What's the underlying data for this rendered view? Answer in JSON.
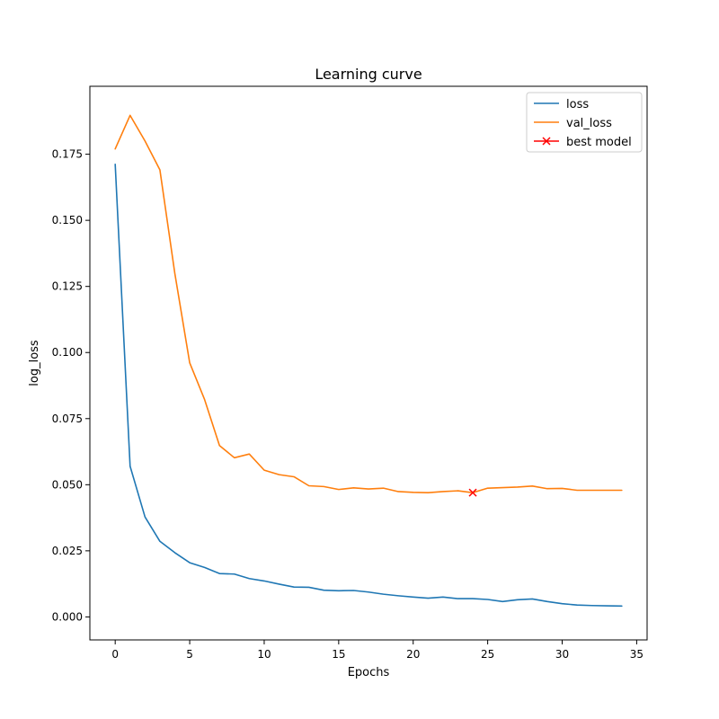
{
  "chart_data": {
    "type": "line",
    "title": "Learning curve",
    "xlabel": "Epochs",
    "ylabel": "log_loss",
    "xlim": [
      -1.7,
      35.7
    ],
    "ylim": [
      -0.0087,
      0.2007
    ],
    "x_ticks": [
      0,
      5,
      10,
      15,
      20,
      25,
      30,
      35
    ],
    "y_ticks": [
      0.0,
      0.025,
      0.05,
      0.075,
      0.1,
      0.125,
      0.15,
      0.175
    ],
    "y_tick_labels": [
      "0.000",
      "0.025",
      "0.050",
      "0.075",
      "0.100",
      "0.125",
      "0.150",
      "0.175"
    ],
    "grid": false,
    "legend_position": "top-right",
    "series": [
      {
        "name": "loss",
        "color": "#1f77b4",
        "x": [
          0,
          1,
          2,
          3,
          4,
          5,
          6,
          7,
          8,
          9,
          10,
          11,
          12,
          13,
          14,
          15,
          16,
          17,
          18,
          19,
          20,
          21,
          22,
          23,
          24,
          25,
          26,
          27,
          28,
          29,
          30,
          31,
          32,
          33,
          34
        ],
        "values": [
          0.1712,
          0.057,
          0.0378,
          0.0286,
          0.0243,
          0.0205,
          0.0187,
          0.0164,
          0.0162,
          0.0145,
          0.0136,
          0.0124,
          0.0113,
          0.0112,
          0.0101,
          0.0099,
          0.01,
          0.0094,
          0.0086,
          0.008,
          0.0075,
          0.0071,
          0.0075,
          0.0069,
          0.0069,
          0.0066,
          0.0058,
          0.0065,
          0.0068,
          0.0058,
          0.005,
          0.0045,
          0.0043,
          0.0042,
          0.0041
        ]
      },
      {
        "name": "val_loss",
        "color": "#ff7f0e",
        "x": [
          0,
          1,
          2,
          3,
          4,
          5,
          6,
          7,
          8,
          9,
          10,
          11,
          12,
          13,
          14,
          15,
          16,
          17,
          18,
          19,
          20,
          21,
          22,
          23,
          24,
          25,
          26,
          27,
          28,
          29,
          30,
          31,
          32,
          33,
          34
        ],
        "values": [
          0.177,
          0.1897,
          0.18,
          0.1691,
          0.13,
          0.0961,
          0.0822,
          0.0648,
          0.0602,
          0.0616,
          0.0555,
          0.0538,
          0.053,
          0.0496,
          0.0493,
          0.0482,
          0.0488,
          0.0484,
          0.0487,
          0.0474,
          0.0471,
          0.047,
          0.0474,
          0.0477,
          0.047,
          0.0487,
          0.0489,
          0.0491,
          0.0495,
          0.0485,
          0.0486,
          0.0479,
          0.0479,
          0.0479,
          0.0479
        ]
      }
    ],
    "markers": [
      {
        "name": "best model",
        "color": "#ff0000",
        "symbol": "x",
        "x": 24,
        "y": 0.047
      }
    ]
  }
}
